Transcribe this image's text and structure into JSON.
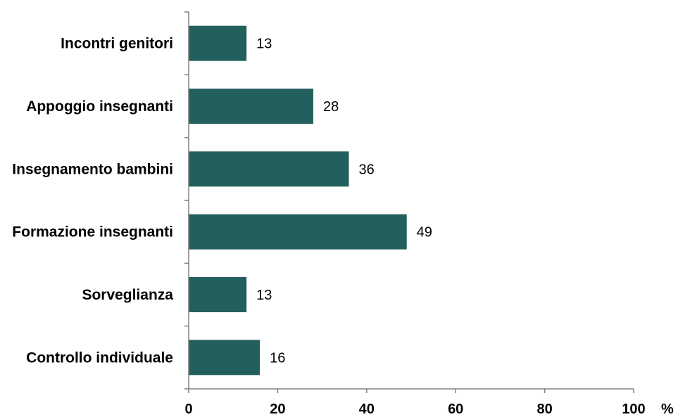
{
  "chart_data": {
    "type": "bar",
    "orientation": "horizontal",
    "categories": [
      "Incontri genitori",
      "Appoggio insegnanti",
      "Insegnamento bambini",
      "Formazione insegnanti",
      "Sorveglianza",
      "Controllo individuale"
    ],
    "values": [
      13,
      28,
      36,
      49,
      13,
      16
    ],
    "data_labels": [
      "13",
      "28",
      "36",
      "49",
      "13",
      "16"
    ],
    "xlim": [
      0,
      100
    ],
    "x_ticks": [
      "0",
      "20",
      "40",
      "60",
      "80",
      "100"
    ],
    "x_unit": "%",
    "bar_color": "#23605D",
    "grid": false,
    "legend": "none"
  }
}
